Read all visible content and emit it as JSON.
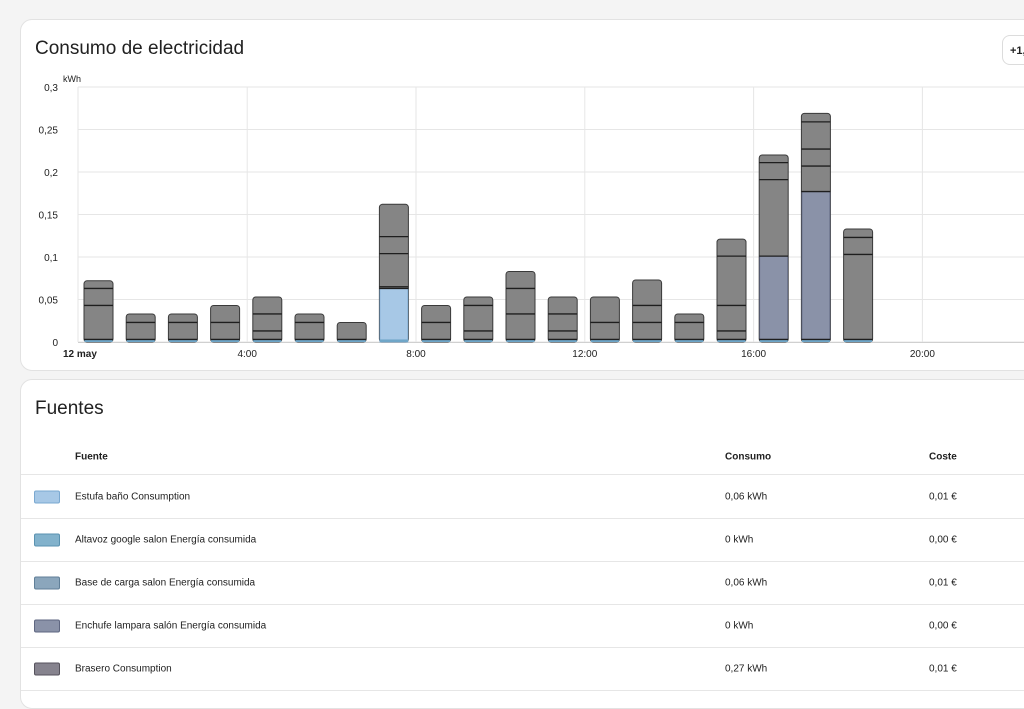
{
  "chart_card": {
    "title": "Consumo de electricidad",
    "period_button": "+1,"
  },
  "chart_data": {
    "type": "bar",
    "stacked": true,
    "ylabel": "kWh",
    "ylim": [
      0,
      0.3
    ],
    "y_ticks": [
      "0",
      "0,05",
      "0,1",
      "0,15",
      "0,2",
      "0,25",
      "0,3"
    ],
    "x_ticks": [
      "12 may",
      "4:00",
      "8:00",
      "12:00",
      "16:00",
      "20:00"
    ],
    "categories": [
      "0:00",
      "1:00",
      "2:00",
      "3:00",
      "4:00",
      "5:00",
      "6:00",
      "7:00",
      "8:00",
      "9:00",
      "10:00",
      "11:00",
      "12:00",
      "13:00",
      "14:00",
      "15:00",
      "16:00",
      "17:00",
      "18:00"
    ],
    "totals": [
      0.072,
      0.033,
      0.033,
      0.043,
      0.053,
      0.033,
      0.023,
      0.162,
      0.043,
      0.053,
      0.083,
      0.053,
      0.053,
      0.073,
      0.033,
      0.121,
      0.22,
      0.269,
      0.133
    ],
    "segment_boundaries": [
      [
        0.003,
        0.043,
        0.063
      ],
      [
        0.003,
        0.023
      ],
      [
        0.003,
        0.023
      ],
      [
        0.003,
        0.023
      ],
      [
        0.003,
        0.013,
        0.033
      ],
      [
        0.003,
        0.023
      ],
      [
        0.003
      ],
      [
        0.063,
        0.065,
        0.104,
        0.124
      ],
      [
        0.003,
        0.023
      ],
      [
        0.003,
        0.013,
        0.043
      ],
      [
        0.003,
        0.033,
        0.063
      ],
      [
        0.003,
        0.013,
        0.033
      ],
      [
        0.003,
        0.023
      ],
      [
        0.003,
        0.023,
        0.043
      ],
      [
        0.003,
        0.023
      ],
      [
        0.003,
        0.013,
        0.043,
        0.101
      ],
      [
        0.003,
        0.101,
        0.191,
        0.211
      ],
      [
        0.003,
        0.177,
        0.207,
        0.227,
        0.259
      ],
      [
        0.003,
        0.103,
        0.123
      ]
    ],
    "colored_bars": [
      {
        "index": 7,
        "series": "Estufa baño Consumption",
        "from": 0,
        "to": 0.063
      },
      {
        "index": 16,
        "series": "Enchufe lampara salón Energía consumida",
        "from": 0.003,
        "to": 0.101
      },
      {
        "index": 17,
        "series": "Enchufe lampara salón Energía consumida",
        "from": 0.003,
        "to": 0.177
      }
    ],
    "grid": true
  },
  "sources_card": {
    "title": "Fuentes",
    "columns": {
      "source": "Fuente",
      "consumption": "Consumo",
      "cost": "Coste"
    },
    "rows": [
      {
        "name": "Estufa baño Consumption",
        "consumption": "0,06 kWh",
        "cost": "0,01 €",
        "color": "#a7c8e6",
        "border": "#7aa8d0"
      },
      {
        "name": "Altavoz google salon Energía consumida",
        "consumption": "0 kWh",
        "cost": "0,00 €",
        "color": "#82b2cc",
        "border": "#5a92b0"
      },
      {
        "name": "Base de carga salon Energía consumida",
        "consumption": "0,06 kWh",
        "cost": "0,01 €",
        "color": "#8ba6bc",
        "border": "#607f98"
      },
      {
        "name": "Enchufe lampara salón Energía consumida",
        "consumption": "0 kWh",
        "cost": "0,00 €",
        "color": "#8a92a8",
        "border": "#5e6680"
      },
      {
        "name": "Brasero Consumption",
        "consumption": "0,27 kWh",
        "cost": "0,01 €",
        "color": "#86838e",
        "border": "#55525c"
      }
    ]
  }
}
